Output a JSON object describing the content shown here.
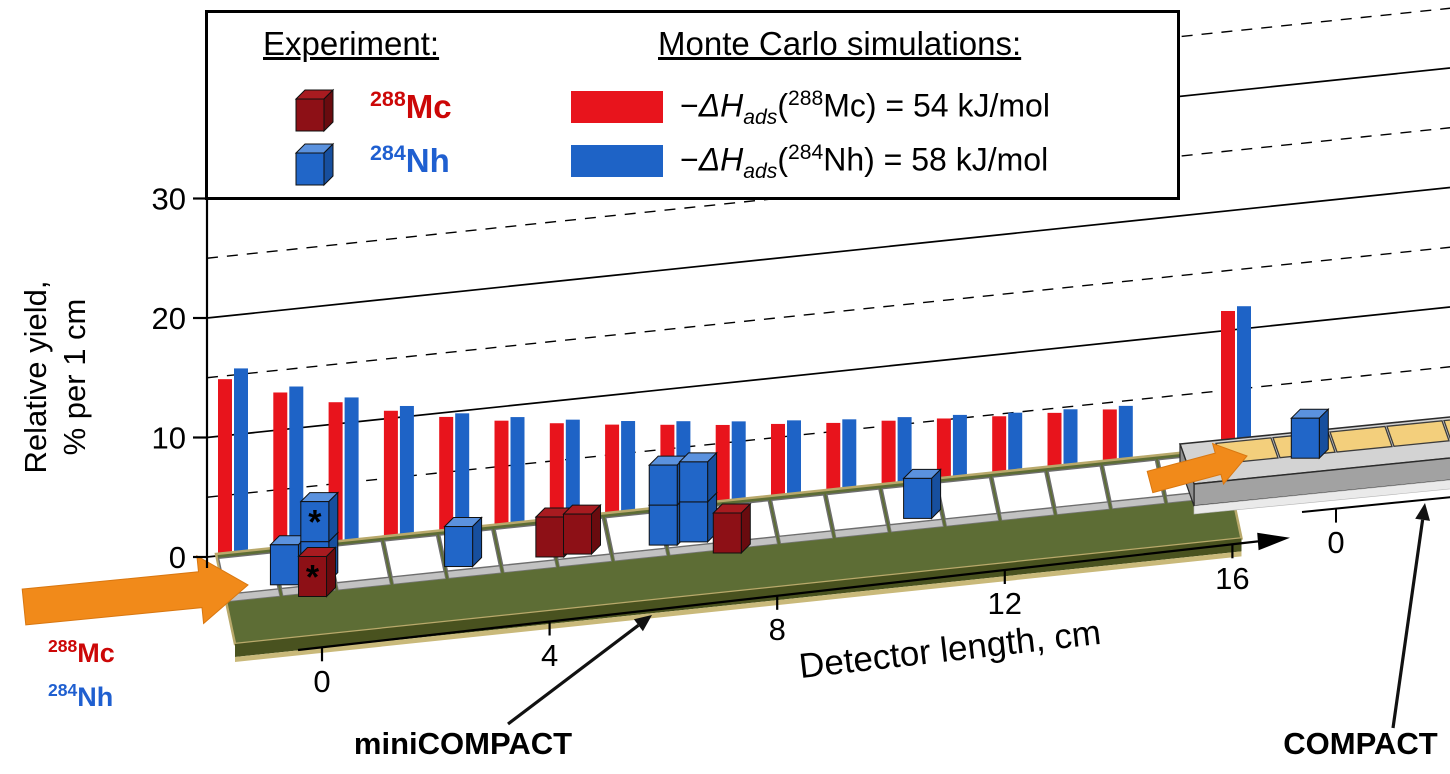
{
  "colors": {
    "sim_red": "#e8141c",
    "sim_blue": "#1e63c6",
    "exp_red_front": "#8d1016",
    "exp_red_top": "#a81b20",
    "exp_red_side": "#690b0f",
    "exp_blue_front": "#2166c8",
    "exp_blue_top": "#5b92de",
    "exp_blue_side": "#174f9e",
    "orange": "#f18a1a",
    "slab_green": "#5d6d35",
    "compact_yellow": "#f3cf7c",
    "mc_text": "#cc0707",
    "nh_text": "#1f5fd0"
  },
  "y_axis": {
    "title_line1": "Relative yield,",
    "title_line2": "% per 1 cm",
    "ticks": [
      0,
      10,
      20,
      30
    ]
  },
  "x_axis": {
    "title": "Detector length, cm",
    "ticks": [
      0,
      4,
      8,
      12,
      16
    ]
  },
  "compact_axis": {
    "tick_zero": "0"
  },
  "legend": {
    "experiment_title": "Experiment:",
    "mc_title": "Monte Carlo simulations:",
    "exp_items": [
      {
        "mass": "288",
        "symbol": "Mc"
      },
      {
        "mass": "284",
        "symbol": "Nh"
      }
    ],
    "mc_items": [
      {
        "prefix": "−",
        "dh": "ΔH",
        "sub": "ads",
        "open": "(",
        "mass": "288",
        "symbol": "Mc",
        "rest": ") = 54 kJ/mol"
      },
      {
        "prefix": "−",
        "dh": "ΔH",
        "sub": "ads",
        "open": "(",
        "mass": "284",
        "symbol": "Nh",
        "rest": ") = 58 kJ/mol"
      }
    ]
  },
  "beam_labels": {
    "mc": {
      "mass": "288",
      "symbol": "Mc"
    },
    "nh": {
      "mass": "284",
      "symbol": "Nh"
    }
  },
  "detector_labels": {
    "mini": "miniCOMPACT",
    "compact": "COMPACT"
  },
  "annotations": {
    "asterisk": "*"
  },
  "chart_data": {
    "type": "bar",
    "title": "",
    "xlabel": "Detector length, cm",
    "ylabel": "Relative yield, % per 1 cm",
    "ylim": [
      0,
      40
    ],
    "y_ticks": [
      0,
      10,
      20,
      30
    ],
    "gridlines": {
      "solid": [
        0,
        10,
        20,
        30
      ],
      "dashed": [
        5,
        15,
        25,
        35
      ]
    },
    "x_ticks": {
      "miniCOMPACT": [
        0,
        4,
        8,
        12,
        16
      ],
      "COMPACT": [
        0
      ]
    },
    "categories_cm": [
      0,
      1,
      2,
      3,
      4,
      5,
      6,
      7,
      8,
      9,
      10,
      11,
      12,
      13,
      14,
      15,
      16
    ],
    "series": [
      {
        "name": "Monte Carlo −ΔHads(288Mc) = 54 kJ/mol",
        "isotope": "288Mc",
        "color": "#e8141c",
        "detector": "miniCOMPACT",
        "values": [
          15.3,
          13.7,
          12.4,
          11.2,
          10.2,
          9.4,
          8.7,
          8.1,
          7.6,
          7.1,
          6.7,
          6.3,
          6.0,
          5.7,
          5.4,
          5.2,
          5.0
        ]
      },
      {
        "name": "Monte Carlo −ΔHads(284Nh) = 58 kJ/mol",
        "isotope": "284Nh",
        "color": "#1e63c6",
        "detector": "miniCOMPACT",
        "values": [
          16.2,
          14.2,
          12.8,
          11.6,
          10.5,
          9.7,
          9.0,
          8.4,
          7.9,
          7.4,
          7.0,
          6.6,
          6.3,
          6.0,
          5.7,
          5.5,
          5.3
        ]
      }
    ],
    "compact_first_segment": {
      "position_cm": 0,
      "288Mc": 11.8,
      "284Nh": 12.2
    },
    "experiment_events": {
      "288Mc": [
        {
          "detector": "miniCOMPACT",
          "position_cm": 0.95,
          "stack": 1,
          "asterisk": true,
          "front": true
        },
        {
          "detector": "miniCOMPACT",
          "position_cm": 5.35,
          "stack": 1
        },
        {
          "detector": "miniCOMPACT",
          "position_cm": 5.85,
          "stack": 1
        },
        {
          "detector": "miniCOMPACT",
          "position_cm": 8.45,
          "stack": 1,
          "front": true
        }
      ],
      "284Nh": [
        {
          "detector": "miniCOMPACT",
          "position_cm": 0.55,
          "stack": 1
        },
        {
          "detector": "miniCOMPACT",
          "position_cm": 1.1,
          "stack": 2,
          "asterisk": true
        },
        {
          "detector": "miniCOMPACT",
          "position_cm": 3.7,
          "stack": 1
        },
        {
          "detector": "miniCOMPACT",
          "position_cm": 7.4,
          "stack": 2
        },
        {
          "detector": "miniCOMPACT",
          "position_cm": 7.95,
          "stack": 2
        },
        {
          "detector": "miniCOMPACT",
          "position_cm": 12.0,
          "stack": 1
        },
        {
          "detector": "COMPACT",
          "position_cm": 1.0,
          "stack": 1
        }
      ]
    }
  }
}
